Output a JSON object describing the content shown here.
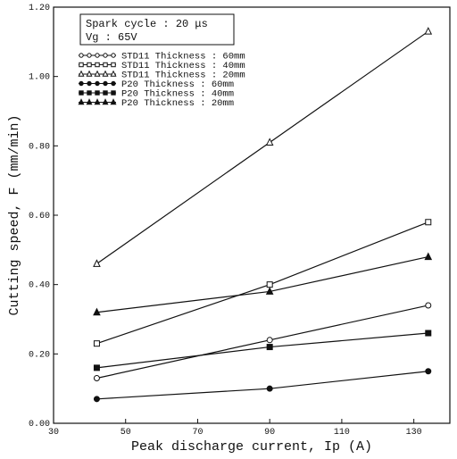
{
  "chart_data": {
    "type": "line",
    "xlabel": "Peak discharge current, Ip (A)",
    "ylabel": "Cutting speed, F (mm/min)",
    "xlim": [
      30,
      140
    ],
    "ylim": [
      0.0,
      1.2
    ],
    "xticks": [
      "30",
      "50",
      "70",
      "90",
      "110",
      "130"
    ],
    "yticks": [
      "0.00",
      "0.20",
      "0.40",
      "0.60",
      "0.80",
      "1.00",
      "1.20"
    ],
    "grid": false,
    "legend_placement": "top-left",
    "conditions": [
      "Spark cycle : 20 μs",
      "Vg : 65V"
    ],
    "x": [
      42,
      90,
      134
    ],
    "series": [
      {
        "name": "STD11 Thickness : 60mm",
        "marker": "open-circle",
        "values": [
          0.13,
          0.24,
          0.34
        ]
      },
      {
        "name": "STD11 Thickness : 40mm",
        "marker": "open-square",
        "values": [
          0.23,
          0.4,
          0.58
        ]
      },
      {
        "name": "STD11 Thickness : 20mm",
        "marker": "open-triangle",
        "values": [
          0.46,
          0.81,
          1.13
        ]
      },
      {
        "name": "P20 Thickness : 60mm",
        "marker": "filled-circle",
        "values": [
          0.07,
          0.1,
          0.15
        ]
      },
      {
        "name": "P20 Thickness : 40mm",
        "marker": "filled-square",
        "values": [
          0.16,
          0.22,
          0.26
        ]
      },
      {
        "name": "P20 Thickness : 20mm",
        "marker": "filled-triangle",
        "values": [
          0.32,
          0.38,
          0.48
        ]
      }
    ]
  }
}
